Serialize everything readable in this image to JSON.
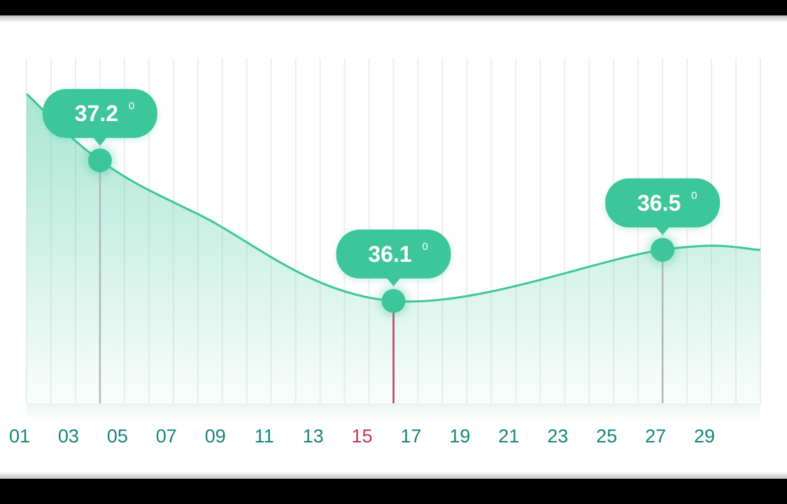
{
  "chart_data": {
    "type": "area",
    "x_ticks": [
      "01",
      "03",
      "05",
      "07",
      "09",
      "11",
      "13",
      "15",
      "17",
      "19",
      "21",
      "23",
      "25",
      "27",
      "29"
    ],
    "highlighted_tick": "15",
    "x": [
      1,
      4,
      8,
      16,
      27,
      30
    ],
    "y": [
      37.72,
      37.2,
      36.78,
      36.1,
      36.5,
      36.5
    ],
    "xlim": [
      1,
      31
    ],
    "ylim": [
      35.3,
      38.0
    ],
    "annotations": [
      {
        "x": 4,
        "y": 37.2,
        "label": "37.2",
        "unit": "0",
        "marker_color": "#b0b7bd"
      },
      {
        "x": 16,
        "y": 36.1,
        "label": "36.1",
        "unit": "0",
        "marker_color": "#c2385a"
      },
      {
        "x": 27,
        "y": 36.5,
        "label": "36.5",
        "unit": "0",
        "marker_color": "#b0b7bd"
      }
    ],
    "grid": "vertical",
    "line_color": "#3ec69a",
    "bubble_color": "#3ec69a"
  }
}
